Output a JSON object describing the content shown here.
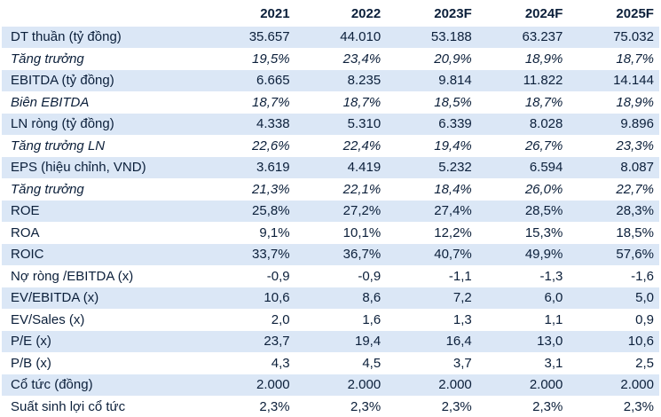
{
  "header": {
    "label": "",
    "years": [
      "2021",
      "2022",
      "2023F",
      "2024F",
      "2025F"
    ]
  },
  "rows": [
    {
      "label": "DT thuần (tỷ đồng)",
      "values": [
        "35.657",
        "44.010",
        "53.188",
        "63.237",
        "75.032"
      ],
      "italic": false,
      "shaded": true
    },
    {
      "label": "Tăng trưởng",
      "values": [
        "19,5%",
        "23,4%",
        "20,9%",
        "18,9%",
        "18,7%"
      ],
      "italic": true,
      "shaded": false
    },
    {
      "label": "EBITDA (tỷ đồng)",
      "values": [
        "6.665",
        "8.235",
        "9.814",
        "11.822",
        "14.144"
      ],
      "italic": false,
      "shaded": true
    },
    {
      "label": "Biên EBITDA",
      "values": [
        "18,7%",
        "18,7%",
        "18,5%",
        "18,7%",
        "18,9%"
      ],
      "italic": true,
      "shaded": false
    },
    {
      "label": "LN ròng (tỷ đồng)",
      "values": [
        "4.338",
        "5.310",
        "6.339",
        "8.028",
        "9.896"
      ],
      "italic": false,
      "shaded": true
    },
    {
      "label": "Tăng trưởng LN",
      "values": [
        "22,6%",
        "22,4%",
        "19,4%",
        "26,7%",
        "23,3%"
      ],
      "italic": true,
      "shaded": false
    },
    {
      "label": "EPS (hiệu chỉnh, VND)",
      "values": [
        "3.619",
        "4.419",
        "5.232",
        "6.594",
        "8.087"
      ],
      "italic": false,
      "shaded": true
    },
    {
      "label": "Tăng trưởng",
      "values": [
        "21,3%",
        "22,1%",
        "18,4%",
        "26,0%",
        "22,7%"
      ],
      "italic": true,
      "shaded": false
    },
    {
      "label": "ROE",
      "values": [
        "25,8%",
        "27,2%",
        "27,4%",
        "28,5%",
        "28,3%"
      ],
      "italic": false,
      "shaded": true
    },
    {
      "label": "ROA",
      "values": [
        "9,1%",
        "10,1%",
        "12,2%",
        "15,3%",
        "18,5%"
      ],
      "italic": false,
      "shaded": false
    },
    {
      "label": "ROIC",
      "values": [
        "33,7%",
        "36,7%",
        "40,7%",
        "49,9%",
        "57,6%"
      ],
      "italic": false,
      "shaded": true
    },
    {
      "label": "Nợ ròng /EBITDA (x)",
      "values": [
        "-0,9",
        "-0,9",
        "-1,1",
        "-1,3",
        "-1,6"
      ],
      "italic": false,
      "shaded": false
    },
    {
      "label": "EV/EBITDA (x)",
      "values": [
        "10,6",
        "8,6",
        "7,2",
        "6,0",
        "5,0"
      ],
      "italic": false,
      "shaded": true
    },
    {
      "label": "EV/Sales (x)",
      "values": [
        "2,0",
        "1,6",
        "1,3",
        "1,1",
        "0,9"
      ],
      "italic": false,
      "shaded": false
    },
    {
      "label": "P/E (x)",
      "values": [
        "23,7",
        "19,4",
        "16,4",
        "13,0",
        "10,6"
      ],
      "italic": false,
      "shaded": true
    },
    {
      "label": "P/B (x)",
      "values": [
        "4,3",
        "4,5",
        "3,7",
        "3,1",
        "2,5"
      ],
      "italic": false,
      "shaded": false
    },
    {
      "label": "Cổ tức (đồng)",
      "values": [
        "2.000",
        "2.000",
        "2.000",
        "2.000",
        "2.000"
      ],
      "italic": false,
      "shaded": true
    },
    {
      "label": "Suất sinh lợi cổ tức",
      "values": [
        "2,3%",
        "2,3%",
        "2,3%",
        "2,3%",
        "2,3%"
      ],
      "italic": false,
      "shaded": false
    }
  ]
}
